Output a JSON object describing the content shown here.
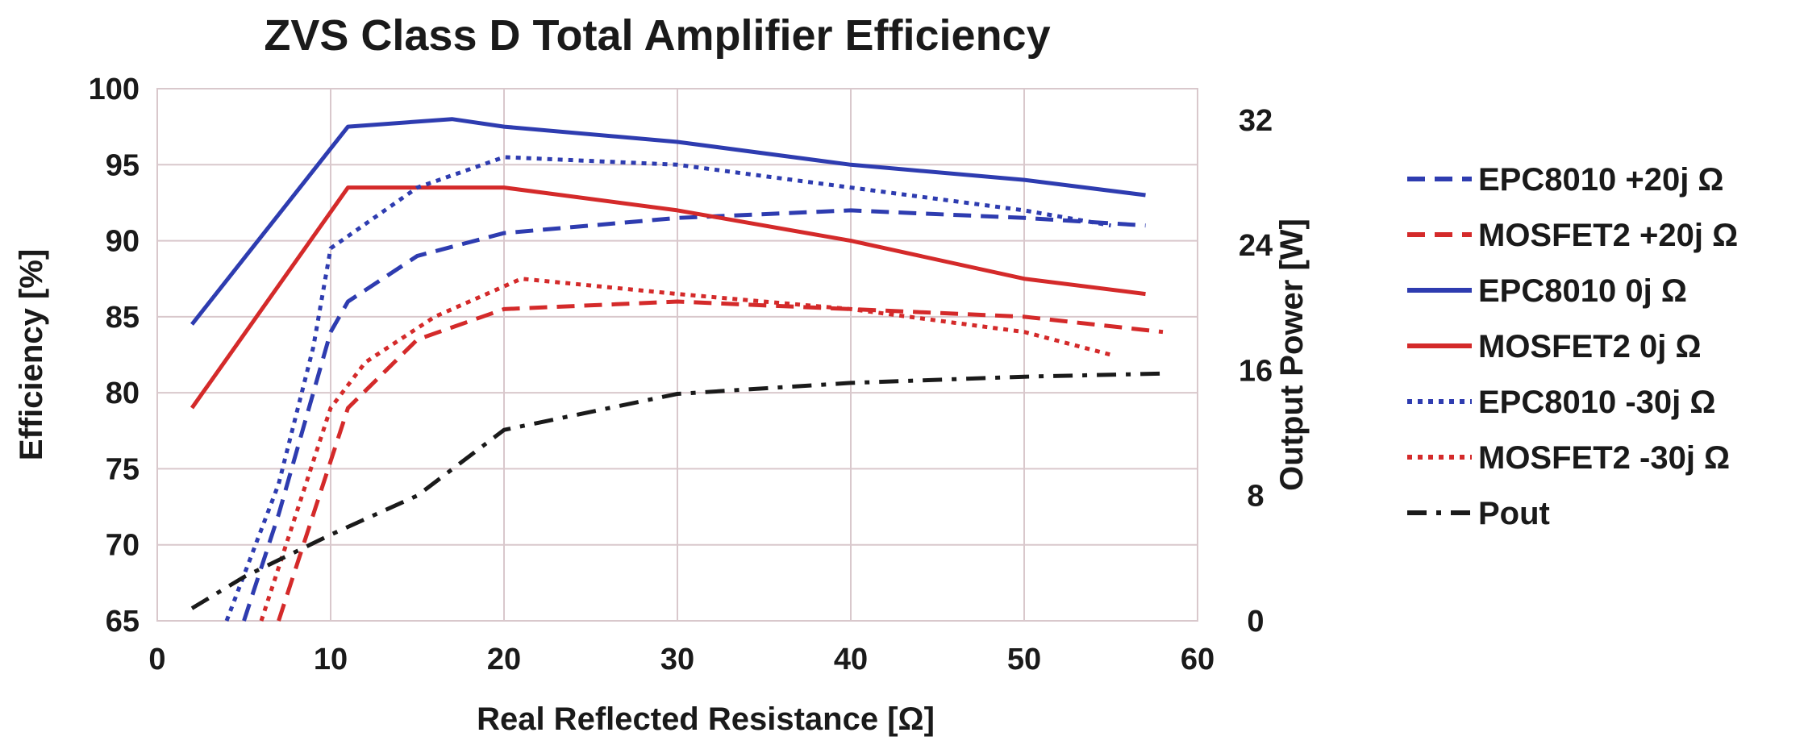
{
  "chart_data": {
    "type": "line",
    "title": "ZVS Class D Total Amplifier Efficiency",
    "xlabel": "Real Reflected Resistance [Ω]",
    "ylabel": "Efficiency [%]",
    "y2label": "Output Power [W]",
    "xlim": [
      0,
      60
    ],
    "ylim": [
      65,
      100
    ],
    "y2lim": [
      0,
      34
    ],
    "xticks": [
      "0",
      "10",
      "20",
      "30",
      "40",
      "50",
      "60"
    ],
    "yticks": [
      "65",
      "70",
      "75",
      "80",
      "85",
      "90",
      "95",
      "100"
    ],
    "y2ticks": [
      "0",
      "8",
      "16",
      "24",
      "32"
    ],
    "grid": true,
    "legend_position": "right",
    "series": [
      {
        "name": "EPC8010 +20j Ω",
        "axis": "left",
        "color": "#2e3cb0",
        "style": "dashed",
        "points": [
          [
            5,
            65
          ],
          [
            7,
            72
          ],
          [
            10,
            84
          ],
          [
            11,
            86
          ],
          [
            15,
            89
          ],
          [
            20,
            90.5
          ],
          [
            30,
            91.5
          ],
          [
            40,
            92
          ],
          [
            50,
            91.5
          ],
          [
            57,
            91
          ]
        ]
      },
      {
        "name": "MOSFET2 +20j Ω",
        "axis": "left",
        "color": "#d42a2a",
        "style": "dashed",
        "points": [
          [
            7,
            65
          ],
          [
            9,
            72
          ],
          [
            11,
            79
          ],
          [
            15,
            83.5
          ],
          [
            20,
            85.5
          ],
          [
            30,
            86
          ],
          [
            40,
            85.5
          ],
          [
            50,
            85
          ],
          [
            58,
            84
          ]
        ]
      },
      {
        "name": "EPC8010 0j Ω",
        "axis": "left",
        "color": "#2e3cb0",
        "style": "solid",
        "points": [
          [
            2,
            84.5
          ],
          [
            11,
            97.5
          ],
          [
            17,
            98
          ],
          [
            20,
            97.5
          ],
          [
            30,
            96.5
          ],
          [
            40,
            95
          ],
          [
            50,
            94
          ],
          [
            57,
            93
          ]
        ]
      },
      {
        "name": "MOSFET2 0j Ω",
        "axis": "left",
        "color": "#d42a2a",
        "style": "solid",
        "points": [
          [
            2,
            79
          ],
          [
            11,
            93.5
          ],
          [
            20,
            93.5
          ],
          [
            30,
            92
          ],
          [
            40,
            90
          ],
          [
            50,
            87.5
          ],
          [
            57,
            86.5
          ]
        ]
      },
      {
        "name": "EPC8010 -30j Ω",
        "axis": "left",
        "color": "#2e3cb0",
        "style": "dotted",
        "points": [
          [
            4,
            65
          ],
          [
            7,
            74
          ],
          [
            9,
            83
          ],
          [
            10,
            89.5
          ],
          [
            15,
            93.5
          ],
          [
            20,
            95.5
          ],
          [
            30,
            95
          ],
          [
            40,
            93.5
          ],
          [
            50,
            92
          ],
          [
            55,
            91
          ]
        ]
      },
      {
        "name": "MOSFET2 -30j Ω",
        "axis": "left",
        "color": "#d42a2a",
        "style": "dotted",
        "points": [
          [
            6,
            65
          ],
          [
            8,
            72
          ],
          [
            10,
            79
          ],
          [
            12,
            82
          ],
          [
            16,
            85
          ],
          [
            21,
            87.5
          ],
          [
            30,
            86.5
          ],
          [
            40,
            85.5
          ],
          [
            50,
            84
          ],
          [
            55,
            82.5
          ]
        ]
      },
      {
        "name": "Pout",
        "axis": "right",
        "color": "#1a1a1a",
        "style": "dashdot",
        "points": [
          [
            2,
            0.8
          ],
          [
            5,
            2.8
          ],
          [
            10,
            5.5
          ],
          [
            15,
            8
          ],
          [
            20,
            12.2
          ],
          [
            30,
            14.5
          ],
          [
            40,
            15.2
          ],
          [
            50,
            15.6
          ],
          [
            58,
            15.8
          ]
        ]
      }
    ]
  }
}
